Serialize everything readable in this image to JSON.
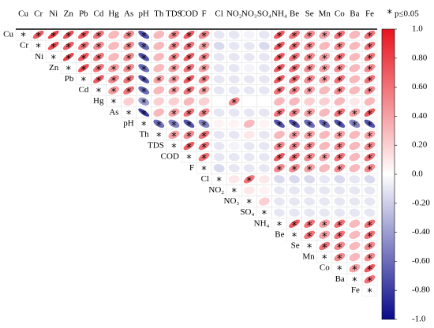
{
  "chart_data": {
    "type": "corrplot",
    "variables": [
      "Cu",
      "Cr",
      "Ni",
      "Zn",
      "Pb",
      "Cd",
      "Hg",
      "As",
      "pH",
      "Th",
      "TDS",
      "COD",
      "F",
      "Cl",
      "NO₂",
      "NO₃",
      "SO₄",
      "NH₄",
      "Be",
      "Se",
      "Mn",
      "Co",
      "Ba",
      "Fe"
    ],
    "matrix": [
      [
        1,
        0.7,
        0.8,
        0.75,
        0.7,
        0.6,
        0.3,
        0.5,
        -0.7,
        0.3,
        0.5,
        0.7,
        0.5,
        -0.1,
        -0.1,
        -0.05,
        -0.1,
        0.7,
        0.6,
        0.5,
        0.4,
        0.6,
        0.3,
        0.6
      ],
      [
        1,
        0.75,
        0.7,
        0.6,
        0.5,
        0.3,
        0.5,
        -0.6,
        0.3,
        0.5,
        0.6,
        0.4,
        -0.15,
        -0.1,
        -0.1,
        -0.15,
        0.7,
        0.6,
        0.5,
        0.3,
        0.5,
        0.3,
        0.6
      ],
      [
        1,
        0.8,
        0.7,
        0.6,
        0.3,
        0.5,
        -0.7,
        0.3,
        0.5,
        0.7,
        0.5,
        -0.1,
        -0.1,
        -0.1,
        -0.1,
        0.7,
        0.6,
        0.5,
        0.4,
        0.6,
        0.3,
        0.6
      ],
      [
        1,
        0.75,
        0.6,
        0.4,
        0.5,
        -0.6,
        0.3,
        0.4,
        0.6,
        0.4,
        -0.1,
        -0.1,
        -0.05,
        -0.1,
        0.7,
        0.6,
        0.5,
        0.4,
        0.5,
        0.3,
        0.5
      ],
      [
        1,
        0.7,
        0.5,
        0.6,
        -0.7,
        0.4,
        0.4,
        0.7,
        0.5,
        -0.1,
        -0.1,
        -0.1,
        -0.1,
        0.7,
        0.6,
        0.5,
        0.4,
        0.6,
        0.3,
        0.6
      ],
      [
        1,
        0.4,
        0.6,
        -0.6,
        0.3,
        0.4,
        0.6,
        0.4,
        -0.1,
        -0.1,
        -0.1,
        -0.1,
        0.6,
        0.5,
        0.4,
        0.3,
        0.5,
        0.3,
        0.5
      ],
      [
        1,
        0.2,
        -0.4,
        0.2,
        0.2,
        0.3,
        0.2,
        0,
        0.5,
        0,
        0,
        0.3,
        0.3,
        0.2,
        0.2,
        0.3,
        0.1,
        0.3
      ],
      [
        1,
        -0.8,
        0.3,
        0.4,
        0.6,
        0.5,
        -0.1,
        -0.1,
        -0.1,
        -0.1,
        0.6,
        0.5,
        0.4,
        0.3,
        0.6,
        0.4,
        0.7
      ],
      [
        1,
        -0.6,
        -0.5,
        -0.7,
        -0.5,
        0.05,
        0.05,
        0.3,
        0.05,
        -0.7,
        -0.7,
        -0.6,
        -0.6,
        -0.7,
        -0.5,
        -0.7
      ],
      [
        1,
        0.4,
        0.5,
        0.6,
        -0.1,
        -0.1,
        0.1,
        -0.1,
        0.3,
        0.4,
        0.4,
        0.3,
        0.4,
        0.3,
        0.4
      ],
      [
        1,
        0.7,
        0.6,
        -0.1,
        -0.05,
        -0.1,
        -0.1,
        0.5,
        0.5,
        0.5,
        0.3,
        0.5,
        0.3,
        0.5
      ],
      [
        1,
        0.6,
        -0.1,
        -0.1,
        -0.1,
        -0.1,
        0.7,
        0.6,
        0.5,
        0.4,
        0.6,
        0.3,
        0.6
      ],
      [
        1,
        -0.15,
        -0.1,
        -0.1,
        -0.1,
        0.5,
        0.5,
        0.4,
        0.3,
        0.5,
        0.3,
        0.5
      ],
      [
        1,
        0.1,
        0.6,
        0.1,
        -0.15,
        -0.15,
        -0.15,
        -0.1,
        -0.15,
        -0.1,
        -0.15
      ],
      [
        1,
        0.1,
        0.05,
        -0.1,
        -0.1,
        -0.1,
        -0.1,
        -0.1,
        -0.1,
        -0.1
      ],
      [
        1,
        0.2,
        -0.1,
        -0.1,
        -0.1,
        -0.1,
        -0.1,
        -0.1,
        -0.1
      ],
      [
        1,
        -0.1,
        -0.1,
        -0.1,
        -0.1,
        -0.1,
        -0.1,
        -0.1
      ],
      [
        1,
        0.7,
        0.6,
        0.4,
        0.6,
        0.3,
        0.6
      ],
      [
        1,
        0.6,
        0.4,
        0.6,
        0.3,
        0.6
      ],
      [
        1,
        0.6,
        0.5,
        0.3,
        0.5
      ],
      [
        1,
        0.5,
        0.3,
        0.5
      ],
      [
        1,
        0.4,
        0.7
      ],
      [
        1,
        0.6
      ],
      [
        1
      ]
    ],
    "significant": [
      [
        1,
        1,
        1,
        1,
        1,
        1,
        0,
        1,
        1,
        0,
        1,
        1,
        1,
        0,
        0,
        0,
        0,
        1,
        1,
        1,
        1,
        1,
        0,
        1
      ],
      [
        1,
        1,
        1,
        1,
        1,
        0,
        1,
        1,
        0,
        1,
        1,
        1,
        0,
        0,
        0,
        0,
        1,
        1,
        1,
        0,
        1,
        0,
        1
      ],
      [
        1,
        1,
        1,
        1,
        0,
        1,
        1,
        0,
        1,
        1,
        1,
        0,
        0,
        0,
        0,
        1,
        1,
        1,
        1,
        1,
        0,
        1
      ],
      [
        1,
        1,
        1,
        1,
        1,
        1,
        0,
        1,
        1,
        1,
        0,
        0,
        0,
        0,
        1,
        1,
        1,
        1,
        1,
        0,
        1
      ],
      [
        1,
        1,
        1,
        1,
        1,
        1,
        1,
        1,
        1,
        0,
        0,
        0,
        0,
        1,
        1,
        1,
        1,
        1,
        0,
        1
      ],
      [
        1,
        1,
        1,
        1,
        0,
        1,
        1,
        1,
        0,
        0,
        0,
        0,
        1,
        1,
        1,
        0,
        1,
        0,
        1
      ],
      [
        1,
        0,
        1,
        0,
        0,
        0,
        0,
        0,
        1,
        0,
        0,
        0,
        0,
        0,
        0,
        0,
        0,
        0
      ],
      [
        1,
        1,
        0,
        1,
        1,
        1,
        0,
        0,
        0,
        0,
        1,
        1,
        1,
        0,
        1,
        1,
        1
      ],
      [
        1,
        1,
        1,
        1,
        1,
        0,
        0,
        0,
        0,
        1,
        1,
        1,
        1,
        1,
        1,
        1
      ],
      [
        1,
        1,
        1,
        1,
        0,
        0,
        0,
        0,
        0,
        1,
        1,
        0,
        1,
        0,
        1
      ],
      [
        1,
        1,
        1,
        0,
        0,
        0,
        0,
        1,
        1,
        1,
        0,
        1,
        0,
        1
      ],
      [
        1,
        1,
        0,
        0,
        0,
        0,
        1,
        1,
        1,
        1,
        1,
        0,
        1
      ],
      [
        1,
        0,
        0,
        0,
        0,
        1,
        1,
        1,
        0,
        1,
        0,
        1
      ],
      [
        1,
        0,
        1,
        0,
        0,
        0,
        0,
        0,
        0,
        0,
        0
      ],
      [
        1,
        0,
        0,
        0,
        0,
        0,
        0,
        0,
        0,
        0
      ],
      [
        1,
        0,
        0,
        0,
        0,
        0,
        0,
        0,
        0
      ],
      [
        1,
        0,
        0,
        0,
        0,
        0,
        0,
        0
      ],
      [
        1,
        1,
        1,
        1,
        1,
        0,
        1
      ],
      [
        1,
        1,
        1,
        1,
        0,
        1
      ],
      [
        1,
        1,
        1,
        0,
        1
      ],
      [
        1,
        1,
        0,
        1
      ],
      [
        1,
        1,
        1
      ],
      [
        1,
        1
      ],
      [
        1
      ]
    ],
    "significance_symbol": "*",
    "significance_label": "p≤0.05",
    "colors": [
      "#0a0a8c",
      "#ffffff",
      "#e8141e"
    ],
    "ylim": [
      -1,
      1
    ],
    "yticks": [
      {
        "value": 1,
        "label": "1.0"
      },
      {
        "value": 0.8,
        "label": "0.80"
      },
      {
        "value": 0.6,
        "label": "0.60"
      },
      {
        "value": 0.4,
        "label": "0.40"
      },
      {
        "value": 0.2,
        "label": "0.20"
      },
      {
        "value": 0,
        "label": "0.0"
      },
      {
        "value": -0.2,
        "label": "-0.20"
      },
      {
        "value": -0.4,
        "label": "-0.40"
      },
      {
        "value": -0.6,
        "label": "-0.60"
      },
      {
        "value": -0.8,
        "label": "-0.80"
      },
      {
        "value": -1,
        "label": "-1.0"
      }
    ]
  }
}
